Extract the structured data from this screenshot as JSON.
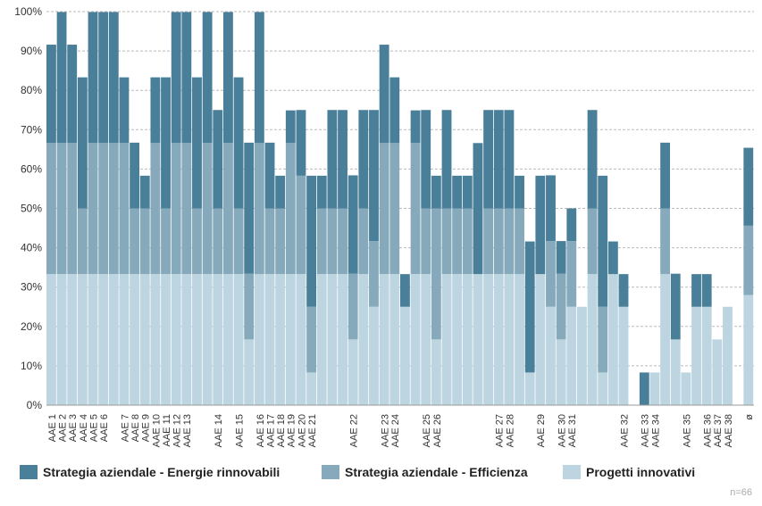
{
  "chart_data": {
    "type": "stacked-bar",
    "categories": [
      "AAE 1",
      "AAE 2",
      "AAE 3",
      "AAE 4",
      "AAE 5",
      "AAE 6",
      null,
      "AAE 7",
      "AAE 8",
      "AAE 9",
      "AAE 10",
      "AAE 11",
      "AAE 12",
      "AAE 13",
      null,
      null,
      "AAE 14",
      null,
      "AAE 15",
      null,
      "AAE 16",
      "AAE 17",
      "AAE 18",
      "AAE 19",
      "AAE 20",
      "AAE 21",
      null,
      null,
      null,
      "AAE 22",
      null,
      null,
      "AAE 23",
      "AAE 24",
      null,
      null,
      "AAE 25",
      "AAE 26",
      null,
      null,
      null,
      null,
      null,
      "AAE 27",
      "AAE 28",
      null,
      null,
      "AAE 29",
      null,
      "AAE 30",
      "AAE 31",
      null,
      null,
      null,
      null,
      "AAE 32",
      null,
      "AAE 33",
      "AAE 34",
      null,
      null,
      "AAE 35",
      null,
      "AAE 36",
      "AAE 37",
      "AAE 38",
      null,
      "ø"
    ],
    "series": [
      {
        "name": "Progetti innovativi",
        "color": "#bcd5e0",
        "values": [
          33.3,
          33.3,
          33.3,
          33.3,
          33.3,
          33.3,
          33.3,
          33.3,
          33.3,
          33.3,
          33.3,
          33.3,
          33.3,
          33.3,
          33.3,
          33.3,
          33.3,
          33.3,
          33.3,
          16.7,
          33.3,
          33.3,
          33.3,
          33.3,
          33.3,
          8.3,
          33.3,
          33.3,
          33.3,
          16.7,
          33.3,
          25,
          33.3,
          33.3,
          25,
          33.3,
          33.3,
          16.7,
          33.3,
          33.3,
          33.3,
          33.3,
          33.3,
          33.3,
          33.3,
          33.3,
          8.3,
          33.3,
          25,
          16.7,
          25,
          25,
          33.3,
          8.3,
          33.3,
          25,
          0,
          0,
          8.3,
          33.3,
          16.7,
          8.3,
          25,
          25,
          16.7,
          25,
          0,
          28
        ]
      },
      {
        "name": "Strategia aziendale - Efficienza",
        "color": "#86aabb",
        "values": [
          33.3,
          33.3,
          33.3,
          16.7,
          33.3,
          33.3,
          33.3,
          33.3,
          16.7,
          16.7,
          33.3,
          16.7,
          33.3,
          33.3,
          16.7,
          33.3,
          16.7,
          33.3,
          16.7,
          16.7,
          33.3,
          16.7,
          16.7,
          33.3,
          25,
          16.7,
          16.7,
          16.7,
          16.7,
          16.7,
          16.7,
          16.7,
          33.3,
          33.3,
          0,
          33.3,
          16.7,
          33.3,
          16.7,
          16.7,
          16.7,
          0,
          16.7,
          16.7,
          16.7,
          16.7,
          0,
          0,
          16.7,
          16.7,
          16.7,
          0,
          16.7,
          16.7,
          0,
          0,
          0,
          0,
          0,
          16.7,
          0,
          0,
          0,
          0,
          0,
          0,
          0,
          17.6
        ]
      },
      {
        "name": "Strategia aziendale - Energie rinnovabili",
        "color": "#4a7f99",
        "values": [
          25,
          33.3,
          25,
          33.3,
          33.3,
          33.3,
          33.3,
          16.7,
          16.7,
          8.3,
          16.7,
          33.3,
          33.3,
          33.3,
          33.3,
          33.3,
          25,
          33.3,
          33.3,
          33.3,
          33.3,
          16.7,
          8.3,
          8.3,
          16.7,
          33.3,
          8.3,
          25,
          25,
          25,
          25,
          33.3,
          25,
          16.7,
          8.3,
          8.3,
          25,
          8.3,
          25,
          8.3,
          8.3,
          33.3,
          25,
          25,
          25,
          8.3,
          33.3,
          25,
          16.7,
          8.3,
          8.3,
          0,
          25,
          33.3,
          8.3,
          8.3,
          0,
          8.3,
          0,
          16.7,
          16.7,
          0,
          8.3,
          8.3,
          0,
          0,
          0,
          19.8
        ]
      }
    ],
    "ylim": [
      0,
      100
    ],
    "yticks": [
      {
        "value": 0,
        "label": "0%"
      },
      {
        "value": 10,
        "label": "10%"
      },
      {
        "value": 20,
        "label": "20%"
      },
      {
        "value": 30,
        "label": "30%"
      },
      {
        "value": 40,
        "label": "40%"
      },
      {
        "value": 50,
        "label": "50%"
      },
      {
        "value": 60,
        "label": "60%"
      },
      {
        "value": 70,
        "label": "70%"
      },
      {
        "value": 80,
        "label": "80%"
      },
      {
        "value": 90,
        "label": "90%"
      },
      {
        "value": 100,
        "label": "100%"
      }
    ],
    "grid": true,
    "note": "n=66"
  }
}
